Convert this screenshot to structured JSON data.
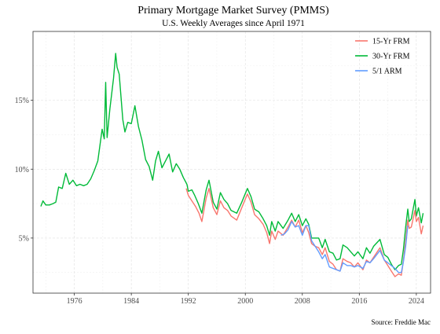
{
  "chart_data": {
    "type": "line",
    "title": "Primary Mortgage Market Survey (PMMS)",
    "subtitle": "U.S. Weekly Averages since April 1971",
    "caption": "Source: Freddie Mac",
    "xlabel": "",
    "ylabel": "",
    "xlim": [
      1970.2,
      2026.0
    ],
    "ylim": [
      1.0,
      20.0
    ],
    "x_ticks": [
      {
        "value": 1976,
        "label": "1976"
      },
      {
        "value": 1984,
        "label": "1984"
      },
      {
        "value": 1992,
        "label": "1992"
      },
      {
        "value": 2000,
        "label": "2000"
      },
      {
        "value": 2008,
        "label": "2008"
      },
      {
        "value": 2016,
        "label": "2016"
      },
      {
        "value": 2024,
        "label": "2024"
      }
    ],
    "y_ticks": [
      {
        "value": 5,
        "label": "5%"
      },
      {
        "value": 10,
        "label": "10%"
      },
      {
        "value": 15,
        "label": "15%"
      }
    ],
    "grid": true,
    "legend_position": "top-right",
    "series": [
      {
        "name": "15-Yr FRM",
        "color": "#f8766d",
        "points": [
          [
            1991.7,
            8.6
          ],
          [
            1992.0,
            8.1
          ],
          [
            1992.5,
            7.7
          ],
          [
            1993.0,
            7.3
          ],
          [
            1993.5,
            6.8
          ],
          [
            1993.9,
            6.2
          ],
          [
            1994.5,
            7.9
          ],
          [
            1994.9,
            8.6
          ],
          [
            1995.5,
            7.2
          ],
          [
            1996.0,
            6.7
          ],
          [
            1996.5,
            7.7
          ],
          [
            1997.0,
            7.2
          ],
          [
            1997.5,
            7.0
          ],
          [
            1998.0,
            6.6
          ],
          [
            1998.8,
            6.3
          ],
          [
            1999.5,
            7.2
          ],
          [
            2000.3,
            8.2
          ],
          [
            2000.8,
            7.6
          ],
          [
            2001.3,
            6.7
          ],
          [
            2001.9,
            6.4
          ],
          [
            2002.5,
            6.0
          ],
          [
            2003.0,
            5.4
          ],
          [
            2003.4,
            4.6
          ],
          [
            2003.7,
            5.5
          ],
          [
            2004.2,
            4.9
          ],
          [
            2004.6,
            5.5
          ],
          [
            2005.3,
            5.2
          ],
          [
            2006.0,
            5.8
          ],
          [
            2006.5,
            6.3
          ],
          [
            2007.0,
            5.8
          ],
          [
            2007.5,
            6.3
          ],
          [
            2008.0,
            5.4
          ],
          [
            2008.5,
            5.9
          ],
          [
            2008.9,
            5.4
          ],
          [
            2009.3,
            4.6
          ],
          [
            2009.8,
            4.4
          ],
          [
            2010.3,
            4.3
          ],
          [
            2010.8,
            3.8
          ],
          [
            2011.2,
            4.3
          ],
          [
            2011.8,
            3.3
          ],
          [
            2012.3,
            3.1
          ],
          [
            2012.8,
            2.7
          ],
          [
            2013.3,
            2.6
          ],
          [
            2013.7,
            3.5
          ],
          [
            2014.3,
            3.3
          ],
          [
            2014.8,
            3.2
          ],
          [
            2015.3,
            2.9
          ],
          [
            2015.8,
            3.2
          ],
          [
            2016.5,
            2.7
          ],
          [
            2017.0,
            3.4
          ],
          [
            2017.5,
            3.2
          ],
          [
            2018.0,
            3.6
          ],
          [
            2018.9,
            4.3
          ],
          [
            2019.5,
            3.4
          ],
          [
            2020.0,
            3.0
          ],
          [
            2020.5,
            2.6
          ],
          [
            2021.0,
            2.2
          ],
          [
            2021.5,
            2.4
          ],
          [
            2021.9,
            2.3
          ],
          [
            2022.2,
            3.4
          ],
          [
            2022.5,
            4.8
          ],
          [
            2022.8,
            6.3
          ],
          [
            2023.0,
            5.7
          ],
          [
            2023.3,
            5.8
          ],
          [
            2023.8,
            7.0
          ],
          [
            2024.0,
            6.2
          ],
          [
            2024.3,
            6.5
          ],
          [
            2024.7,
            5.3
          ],
          [
            2024.95,
            5.9
          ]
        ]
      },
      {
        "name": "30-Yr FRM",
        "color": "#00ba38",
        "points": [
          [
            1971.3,
            7.3
          ],
          [
            1971.6,
            7.7
          ],
          [
            1972.0,
            7.4
          ],
          [
            1972.5,
            7.4
          ],
          [
            1973.0,
            7.5
          ],
          [
            1973.4,
            7.6
          ],
          [
            1973.8,
            8.7
          ],
          [
            1974.3,
            8.6
          ],
          [
            1974.8,
            9.7
          ],
          [
            1975.3,
            8.9
          ],
          [
            1975.8,
            9.2
          ],
          [
            1976.3,
            8.8
          ],
          [
            1976.8,
            8.9
          ],
          [
            1977.3,
            8.8
          ],
          [
            1977.8,
            8.9
          ],
          [
            1978.3,
            9.3
          ],
          [
            1978.8,
            9.9
          ],
          [
            1979.3,
            10.6
          ],
          [
            1979.9,
            12.9
          ],
          [
            1980.2,
            12.2
          ],
          [
            1980.4,
            16.3
          ],
          [
            1980.6,
            12.3
          ],
          [
            1981.0,
            14.4
          ],
          [
            1981.5,
            16.6
          ],
          [
            1981.8,
            18.4
          ],
          [
            1982.0,
            17.4
          ],
          [
            1982.3,
            16.9
          ],
          [
            1982.8,
            13.6
          ],
          [
            1983.1,
            12.7
          ],
          [
            1983.5,
            13.4
          ],
          [
            1984.0,
            13.3
          ],
          [
            1984.5,
            14.6
          ],
          [
            1985.0,
            13.1
          ],
          [
            1985.5,
            12.1
          ],
          [
            1986.0,
            10.7
          ],
          [
            1986.5,
            10.2
          ],
          [
            1987.0,
            9.2
          ],
          [
            1987.4,
            10.6
          ],
          [
            1987.8,
            11.3
          ],
          [
            1988.3,
            10.1
          ],
          [
            1988.8,
            10.6
          ],
          [
            1989.3,
            11.1
          ],
          [
            1989.8,
            9.8
          ],
          [
            1990.3,
            10.4
          ],
          [
            1990.8,
            10.0
          ],
          [
            1991.3,
            9.4
          ],
          [
            1991.8,
            8.9
          ],
          [
            1992.0,
            8.4
          ],
          [
            1992.5,
            8.5
          ],
          [
            1992.9,
            8.1
          ],
          [
            1993.4,
            7.5
          ],
          [
            1993.9,
            6.8
          ],
          [
            1994.5,
            8.5
          ],
          [
            1994.9,
            9.2
          ],
          [
            1995.5,
            7.6
          ],
          [
            1996.0,
            7.1
          ],
          [
            1996.5,
            8.3
          ],
          [
            1997.0,
            7.8
          ],
          [
            1997.5,
            7.5
          ],
          [
            1998.0,
            7.0
          ],
          [
            1998.8,
            6.8
          ],
          [
            1999.5,
            7.6
          ],
          [
            2000.3,
            8.6
          ],
          [
            2000.8,
            8.0
          ],
          [
            2001.3,
            7.1
          ],
          [
            2001.9,
            6.9
          ],
          [
            2002.5,
            6.4
          ],
          [
            2003.0,
            5.9
          ],
          [
            2003.4,
            5.2
          ],
          [
            2003.7,
            6.2
          ],
          [
            2004.2,
            5.5
          ],
          [
            2004.6,
            6.2
          ],
          [
            2005.3,
            5.7
          ],
          [
            2006.0,
            6.3
          ],
          [
            2006.5,
            6.8
          ],
          [
            2007.0,
            6.2
          ],
          [
            2007.5,
            6.7
          ],
          [
            2008.0,
            5.9
          ],
          [
            2008.5,
            6.4
          ],
          [
            2008.9,
            6.0
          ],
          [
            2009.3,
            5.0
          ],
          [
            2009.8,
            5.0
          ],
          [
            2010.3,
            5.0
          ],
          [
            2010.8,
            4.3
          ],
          [
            2011.2,
            4.9
          ],
          [
            2011.8,
            4.0
          ],
          [
            2012.3,
            3.9
          ],
          [
            2012.8,
            3.4
          ],
          [
            2013.3,
            3.5
          ],
          [
            2013.7,
            4.5
          ],
          [
            2014.3,
            4.3
          ],
          [
            2014.8,
            4.0
          ],
          [
            2015.3,
            3.7
          ],
          [
            2015.8,
            4.0
          ],
          [
            2016.5,
            3.5
          ],
          [
            2017.0,
            4.3
          ],
          [
            2017.5,
            3.9
          ],
          [
            2018.0,
            4.4
          ],
          [
            2018.9,
            4.9
          ],
          [
            2019.5,
            3.8
          ],
          [
            2020.0,
            3.6
          ],
          [
            2020.5,
            3.1
          ],
          [
            2021.0,
            2.7
          ],
          [
            2021.5,
            3.0
          ],
          [
            2021.9,
            3.1
          ],
          [
            2022.2,
            4.2
          ],
          [
            2022.5,
            5.8
          ],
          [
            2022.8,
            7.1
          ],
          [
            2023.0,
            6.2
          ],
          [
            2023.3,
            6.4
          ],
          [
            2023.8,
            7.8
          ],
          [
            2024.0,
            6.6
          ],
          [
            2024.3,
            7.2
          ],
          [
            2024.7,
            6.1
          ],
          [
            2024.95,
            6.8
          ]
        ]
      },
      {
        "name": "5/1 ARM",
        "color": "#619cff",
        "points": [
          [
            2005.0,
            5.2
          ],
          [
            2005.5,
            5.3
          ],
          [
            2006.0,
            5.6
          ],
          [
            2006.5,
            6.2
          ],
          [
            2007.0,
            5.8
          ],
          [
            2007.5,
            5.9
          ],
          [
            2008.0,
            5.2
          ],
          [
            2008.5,
            5.9
          ],
          [
            2008.9,
            5.9
          ],
          [
            2009.3,
            4.8
          ],
          [
            2009.8,
            4.4
          ],
          [
            2010.3,
            4.0
          ],
          [
            2010.8,
            3.5
          ],
          [
            2011.2,
            3.8
          ],
          [
            2011.8,
            2.9
          ],
          [
            2012.3,
            2.8
          ],
          [
            2012.8,
            2.7
          ],
          [
            2013.3,
            2.6
          ],
          [
            2013.7,
            3.2
          ],
          [
            2014.3,
            3.0
          ],
          [
            2014.8,
            3.0
          ],
          [
            2015.3,
            2.9
          ],
          [
            2015.8,
            3.0
          ],
          [
            2016.5,
            2.8
          ],
          [
            2017.0,
            3.3
          ],
          [
            2017.5,
            3.2
          ],
          [
            2018.0,
            3.5
          ],
          [
            2018.9,
            4.1
          ],
          [
            2019.5,
            3.4
          ],
          [
            2020.0,
            3.2
          ],
          [
            2020.5,
            3.0
          ],
          [
            2021.0,
            2.8
          ],
          [
            2021.5,
            2.5
          ],
          [
            2021.9,
            2.5
          ],
          [
            2022.2,
            3.3
          ],
          [
            2022.5,
            4.4
          ],
          [
            2022.8,
            5.9
          ]
        ]
      }
    ]
  }
}
